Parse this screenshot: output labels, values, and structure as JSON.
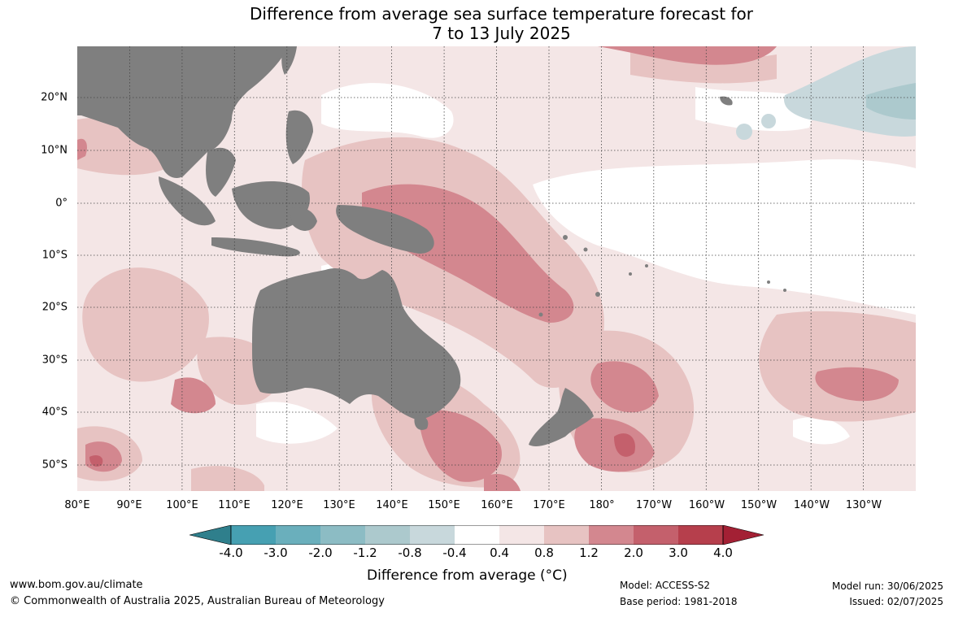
{
  "title": {
    "line1": "Difference from average sea surface temperature forecast for",
    "line2": "7 to 13 July 2025"
  },
  "lat_labels": [
    "20°N",
    "10°N",
    "0°",
    "10°S",
    "20°S",
    "30°S",
    "40°S",
    "50°S"
  ],
  "lon_labels": [
    "80°E",
    "90°E",
    "100°E",
    "110°E",
    "120°E",
    "130°E",
    "140°E",
    "150°E",
    "160°E",
    "170°E",
    "180°",
    "170°W",
    "160°W",
    "150°W",
    "140°W",
    "130°W"
  ],
  "colorbar": {
    "ticks": [
      "-4.0",
      "-3.0",
      "-2.0",
      "-1.2",
      "-0.8",
      "-0.4",
      "0.4",
      "0.8",
      "1.2",
      "2.0",
      "3.0",
      "4.0"
    ],
    "colors": [
      "#46a0b2",
      "#6aafbc",
      "#8cbcc4",
      "#acc9cd",
      "#c8d8dc",
      "#ffffff",
      "#f4e6e6",
      "#e7c3c2",
      "#d3878f",
      "#c4606c",
      "#b63f4c"
    ],
    "under_color": "#2f7f8c",
    "over_color": "#a32034",
    "label": "Difference from average (°C)"
  },
  "footer": {
    "website": "www.bom.gov.au/climate",
    "copyright": "© Commonwealth of Australia 2025, Australian Bureau of Meteorology",
    "model": "Model: ACCESS-S2",
    "base_period": "Base period: 1981-2018",
    "model_run": "Model run: 30/06/2025",
    "issued": "Issued: 02/07/2025"
  },
  "land_color": "#7f7f7f"
}
